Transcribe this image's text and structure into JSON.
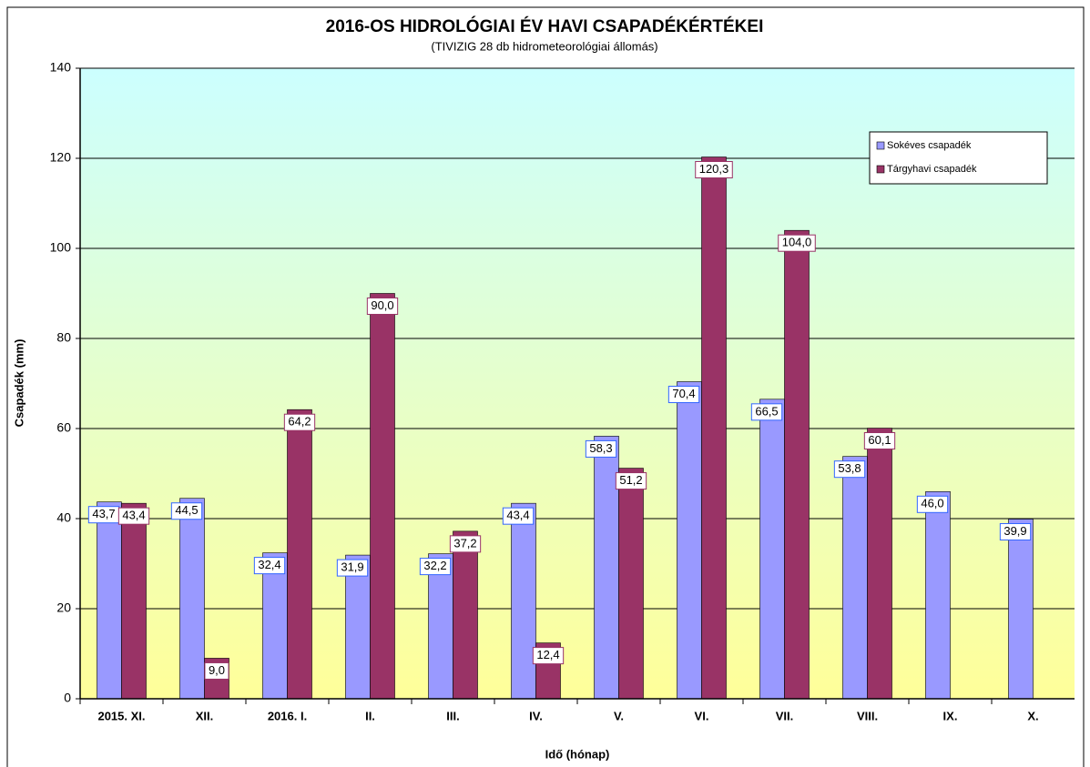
{
  "chart_data": {
    "type": "bar",
    "title": "2016-OS HIDROLÓGIAI  ÉV HAVI CSAPADÉKÉRTÉKEI",
    "subtitle": "(TIVIZIG  28 db hidrometeorológiai állomás)",
    "x_label": "Idő (hónap)",
    "y_label": "Csapadék (mm)",
    "categories": [
      "2015. XI.",
      "XII.",
      "2016. I.",
      "II.",
      "III.",
      "IV.",
      "V.",
      "VI.",
      "VII.",
      "VIII.",
      "IX.",
      "X."
    ],
    "series": [
      {
        "name": "Sokéves csapadék",
        "color": "#9999ff",
        "values": [
          43.7,
          44.5,
          32.4,
          31.9,
          32.2,
          43.4,
          58.3,
          70.4,
          66.5,
          53.8,
          46.0,
          39.9
        ],
        "value_labels": [
          "43,7",
          "44,5",
          "32,4",
          "31,9",
          "32,2",
          "43,4",
          "58,3",
          "70,4",
          "66,5",
          "53,8",
          "46,0",
          "39,9"
        ],
        "label_border": "#3366ff"
      },
      {
        "name": "Tárgyhavi csapadék",
        "color": "#993366",
        "values": [
          43.4,
          9.0,
          64.2,
          90.0,
          37.2,
          12.4,
          51.2,
          120.3,
          104.0,
          60.1,
          null,
          null
        ],
        "value_labels": [
          "43,4",
          "9,0",
          "64,2",
          "90,0",
          "37,2",
          "12,4",
          "51,2",
          "120,3",
          "104,0",
          "60,1",
          null,
          null
        ],
        "label_border": "#993366"
      }
    ],
    "ylim": [
      0,
      140
    ],
    "yticks": [
      0,
      20,
      40,
      60,
      80,
      100,
      120,
      140
    ],
    "grid": true,
    "legend": "upper right"
  }
}
